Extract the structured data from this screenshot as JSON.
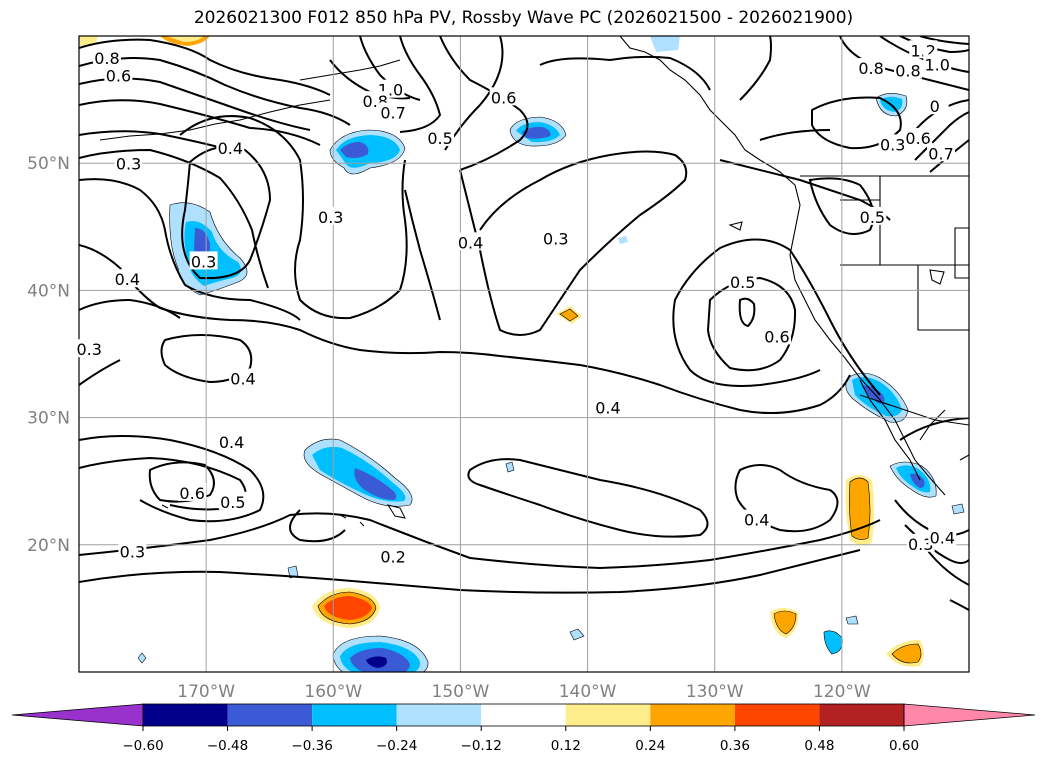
{
  "title": "2026021300 F012 850 hPa PV, Rossby Wave PC (2026021500 - 2026021900)",
  "map": {
    "lon_range": [
      -180,
      -110
    ],
    "lat_range": [
      10,
      60
    ],
    "lon_ticks": [
      {
        "value": -170,
        "label": "170°W"
      },
      {
        "value": -160,
        "label": "160°W"
      },
      {
        "value": -150,
        "label": "150°W"
      },
      {
        "value": -140,
        "label": "140°W"
      },
      {
        "value": -130,
        "label": "130°W"
      },
      {
        "value": -120,
        "label": "120°W"
      }
    ],
    "lat_ticks": [
      {
        "value": 20,
        "label": "20°N"
      },
      {
        "value": 30,
        "label": "30°N"
      },
      {
        "value": 40,
        "label": "40°N"
      },
      {
        "value": 50,
        "label": "50°N"
      }
    ],
    "grid": true,
    "contour_labels": [
      {
        "text": "0.8",
        "lon": -177.8,
        "lat": 58.2
      },
      {
        "text": "0.6",
        "lon": -176.9,
        "lat": 56.8
      },
      {
        "text": "1.0",
        "lon": -155.5,
        "lat": 55.7
      },
      {
        "text": "0.8",
        "lon": -156.7,
        "lat": 54.8
      },
      {
        "text": "0.7",
        "lon": -155.3,
        "lat": 53.9
      },
      {
        "text": "0.6",
        "lon": -146.6,
        "lat": 55.1
      },
      {
        "text": "0.5",
        "lon": -151.6,
        "lat": 51.9
      },
      {
        "text": "0.4",
        "lon": -168.1,
        "lat": 51.1
      },
      {
        "text": "0.3",
        "lon": -176.1,
        "lat": 49.9
      },
      {
        "text": "0.3",
        "lon": -160.2,
        "lat": 45.7
      },
      {
        "text": "0.3",
        "lon": -170.2,
        "lat": 42.2
      },
      {
        "text": "0.4",
        "lon": -176.2,
        "lat": 40.8
      },
      {
        "text": "0.4",
        "lon": -149.2,
        "lat": 43.7
      },
      {
        "text": "0.3",
        "lon": -142.5,
        "lat": 44.0
      },
      {
        "text": "0.3",
        "lon": -179.2,
        "lat": 35.3
      },
      {
        "text": "0.4",
        "lon": -167.1,
        "lat": 33.0
      },
      {
        "text": "0.4",
        "lon": -168.0,
        "lat": 28.0
      },
      {
        "text": "0.6",
        "lon": -171.1,
        "lat": 24.0
      },
      {
        "text": "0.5",
        "lon": -167.9,
        "lat": 23.3
      },
      {
        "text": "0.3",
        "lon": -175.8,
        "lat": 19.4
      },
      {
        "text": "0.2",
        "lon": -155.3,
        "lat": 19.0
      },
      {
        "text": "0.5",
        "lon": -127.8,
        "lat": 40.6
      },
      {
        "text": "0.6",
        "lon": -125.1,
        "lat": 36.3
      },
      {
        "text": "0.4",
        "lon": -138.4,
        "lat": 30.7
      },
      {
        "text": "0.4",
        "lon": -126.7,
        "lat": 21.9
      },
      {
        "text": "0.5",
        "lon": -117.6,
        "lat": 45.7
      },
      {
        "text": "0.3",
        "lon": -116.0,
        "lat": 51.4
      },
      {
        "text": "0.8",
        "lon": -117.7,
        "lat": 57.4
      },
      {
        "text": "0.8",
        "lon": -114.8,
        "lat": 57.2
      },
      {
        "text": "1.2",
        "lon": -113.6,
        "lat": 58.8
      },
      {
        "text": "1.0",
        "lon": -112.5,
        "lat": 57.7
      },
      {
        "text": "0.6",
        "lon": -114.0,
        "lat": 51.9
      },
      {
        "text": "0.7",
        "lon": -112.2,
        "lat": 50.7
      },
      {
        "text": "0.3",
        "lon": -113.8,
        "lat": 20.0
      },
      {
        "text": "0.4",
        "lon": -112.1,
        "lat": 20.5
      },
      {
        "text": "0",
        "lon": -112.7,
        "lat": 54.4
      }
    ],
    "pv_anomaly_patches": [
      {
        "lon": -157.8,
        "lat": 51.0,
        "value": -0.36
      },
      {
        "lon": -144.8,
        "lat": 52.7,
        "value": -0.36
      },
      {
        "lon": -171.0,
        "lat": 43.0,
        "value": -0.36
      },
      {
        "lon": -158.0,
        "lat": 25.0,
        "value": -0.36
      },
      {
        "lon": -155.5,
        "lat": 11.2,
        "value": -0.48
      },
      {
        "lon": -117.5,
        "lat": 31.5,
        "value": -0.36
      },
      {
        "lon": -115.0,
        "lat": 25.2,
        "value": -0.36
      },
      {
        "lon": -113.5,
        "lat": 55.2,
        "value": -0.36
      },
      {
        "lon": -160.0,
        "lat": 15.0,
        "value": 0.36
      },
      {
        "lon": -120.5,
        "lat": 22.5,
        "value": 0.24
      },
      {
        "lon": -125.0,
        "lat": 13.5,
        "value": 0.24
      },
      {
        "lon": -112.0,
        "lat": 11.5,
        "value": 0.24
      },
      {
        "lon": -141.5,
        "lat": 37.8,
        "value": 0.24
      }
    ]
  },
  "colorbar": {
    "ticks": [
      "−0.60",
      "−0.48",
      "−0.36",
      "−0.24",
      "−0.12",
      "0.12",
      "0.24",
      "0.36",
      "0.48",
      "0.60"
    ],
    "colors": {
      "under": "#9932cc",
      "bins": [
        "#00008b",
        "#3b5bd6",
        "#00bfff",
        "#b0e0ff",
        "#ffffff",
        "#ffec8b",
        "#ffa500",
        "#ff4500",
        "#b22222"
      ],
      "over": "#ff88aa"
    }
  }
}
